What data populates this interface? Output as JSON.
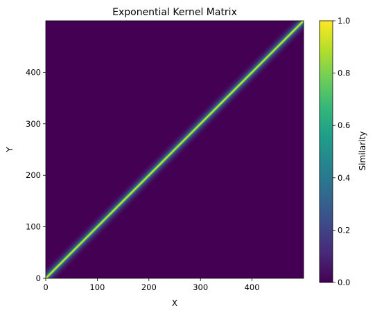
{
  "chart_data": {
    "type": "heatmap",
    "title": "Exponential Kernel Matrix",
    "xlabel": "X",
    "ylabel": "Y",
    "xlim": [
      0,
      500
    ],
    "ylim": [
      0,
      500
    ],
    "x_ticks": [
      0,
      100,
      200,
      300,
      400
    ],
    "y_ticks": [
      0,
      100,
      200,
      300,
      400
    ],
    "value_description": "similarity peaks at 1.0 on the diagonal x = y and decays quickly to 0 away from it",
    "colormap": "viridis",
    "colorbar": {
      "label": "Similarity",
      "range": [
        0.0,
        1.0
      ],
      "ticks": [
        "0.0",
        "0.2",
        "0.4",
        "0.6",
        "0.8",
        "1.0"
      ]
    },
    "grid": false
  },
  "colors": {
    "viridis": [
      "#440154",
      "#482878",
      "#3e4989",
      "#31688e",
      "#26828e",
      "#1f9e89",
      "#35b779",
      "#6ece58",
      "#b5de2b",
      "#fde725"
    ]
  }
}
